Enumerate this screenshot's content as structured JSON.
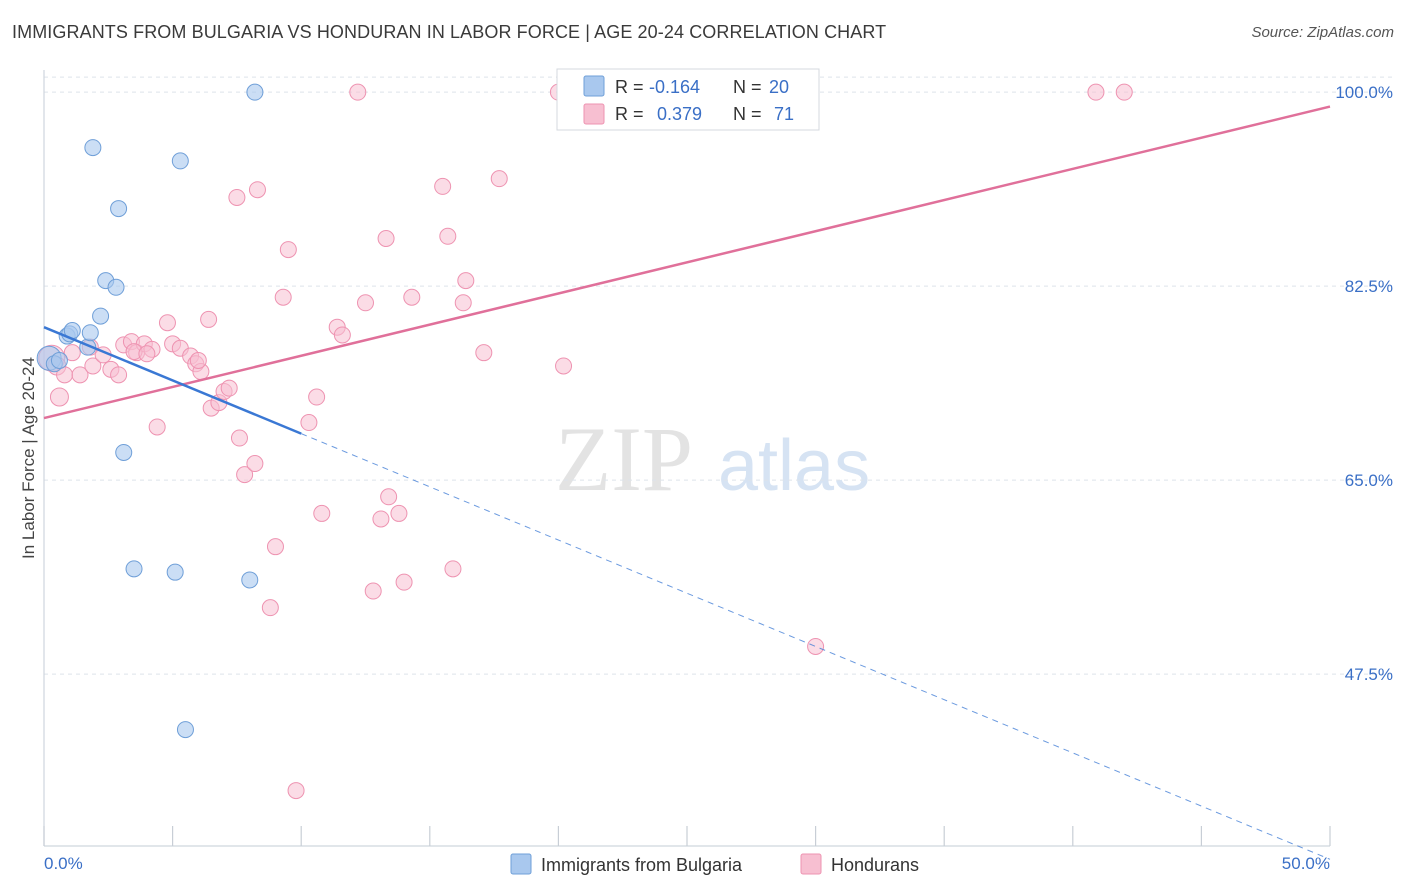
{
  "header": {
    "title": "IMMIGRANTS FROM BULGARIA VS HONDURAN IN LABOR FORCE | AGE 20-24 CORRELATION CHART",
    "source": "Source: ZipAtlas.com"
  },
  "watermark": {
    "part1": "ZIP",
    "part2": "atlas"
  },
  "legend_box": {
    "rows": [
      {
        "r_label": "R =",
        "r_value": "-0.164",
        "n_label": "N =",
        "n_value": "20"
      },
      {
        "r_label": "R =",
        "r_value": "0.379",
        "n_label": "N =",
        "n_value": "71"
      }
    ]
  },
  "bottom_legend": {
    "items": [
      "Immigrants from Bulgaria",
      "Hondurans"
    ]
  },
  "colors": {
    "bulgaria_fill": "#a9c8ee",
    "bulgaria_stroke": "#6f9fd8",
    "bulgaria_line": "#3a78d4",
    "honduran_fill": "#f7bfd1",
    "honduran_stroke": "#ee93b1",
    "honduran_line": "#e0709a",
    "axis_label_blue": "#3a6fc6",
    "grid": "#dde3ea"
  },
  "chart_data": {
    "type": "scatter",
    "title": "IMMIGRANTS FROM BULGARIA VS HONDURAN IN LABOR FORCE | AGE 20-24 CORRELATION CHART",
    "xlabel": "",
    "ylabel": "In Labor Force | Age 20-24",
    "xlim": [
      0,
      50
    ],
    "ylim": [
      32,
      102
    ],
    "x_tick_labels": [
      "0.0%",
      "50.0%"
    ],
    "y_ticks": [
      47.5,
      65.0,
      82.5,
      100.0
    ],
    "y_tick_labels": [
      "47.5%",
      "65.0%",
      "82.5%",
      "100.0%"
    ],
    "grid": true,
    "legend_position": "top-center",
    "series": [
      {
        "name": "Immigrants from Bulgaria",
        "R": -0.164,
        "N": 20,
        "points": [
          [
            0.2,
            76.0
          ],
          [
            0.4,
            75.5
          ],
          [
            0.6,
            75.8
          ],
          [
            0.9,
            78.0
          ],
          [
            1.0,
            78.2
          ],
          [
            1.1,
            78.5
          ],
          [
            1.7,
            77.0
          ],
          [
            1.8,
            78.3
          ],
          [
            2.2,
            79.8
          ],
          [
            2.4,
            83.0
          ],
          [
            2.8,
            82.4
          ],
          [
            2.9,
            89.5
          ],
          [
            3.1,
            67.5
          ],
          [
            3.5,
            57.0
          ],
          [
            5.1,
            56.7
          ],
          [
            1.9,
            95.0
          ],
          [
            5.3,
            93.8
          ],
          [
            8.2,
            100.0
          ],
          [
            8.0,
            56.0
          ],
          [
            5.5,
            42.5
          ]
        ],
        "trend_solid": {
          "x": [
            0,
            10
          ],
          "y": [
            78.8,
            69.2
          ]
        },
        "trend_dashed": {
          "x": [
            10,
            50
          ],
          "y": [
            69.2,
            30.8
          ]
        }
      },
      {
        "name": "Hondurans",
        "R": 0.379,
        "N": 71,
        "points": [
          [
            0.3,
            76.0
          ],
          [
            0.5,
            75.3
          ],
          [
            0.6,
            72.5
          ],
          [
            0.8,
            74.5
          ],
          [
            1.1,
            76.5
          ],
          [
            1.4,
            74.5
          ],
          [
            1.8,
            77.0
          ],
          [
            1.9,
            75.3
          ],
          [
            2.3,
            76.3
          ],
          [
            2.6,
            75.0
          ],
          [
            2.9,
            74.5
          ],
          [
            3.1,
            77.2
          ],
          [
            3.4,
            77.5
          ],
          [
            3.6,
            76.5
          ],
          [
            3.9,
            77.3
          ],
          [
            4.2,
            76.8
          ],
          [
            4.4,
            69.8
          ],
          [
            4.8,
            79.2
          ],
          [
            5.0,
            77.3
          ],
          [
            5.3,
            76.9
          ],
          [
            5.7,
            76.2
          ],
          [
            5.9,
            75.5
          ],
          [
            6.1,
            74.8
          ],
          [
            6.4,
            79.5
          ],
          [
            6.5,
            71.5
          ],
          [
            6.8,
            72.0
          ],
          [
            7.0,
            73.0
          ],
          [
            7.2,
            73.3
          ],
          [
            7.6,
            68.8
          ],
          [
            7.8,
            65.5
          ],
          [
            8.2,
            66.5
          ],
          [
            7.5,
            90.5
          ],
          [
            8.3,
            91.2
          ],
          [
            9.0,
            59.0
          ],
          [
            8.8,
            53.5
          ],
          [
            9.3,
            81.5
          ],
          [
            9.5,
            85.8
          ],
          [
            9.8,
            37.0
          ],
          [
            10.3,
            70.2
          ],
          [
            10.6,
            72.5
          ],
          [
            10.8,
            62.0
          ],
          [
            11.4,
            78.8
          ],
          [
            11.6,
            78.1
          ],
          [
            12.2,
            100.0
          ],
          [
            12.5,
            81.0
          ],
          [
            12.8,
            55.0
          ],
          [
            13.1,
            61.5
          ],
          [
            13.3,
            86.8
          ],
          [
            13.4,
            63.5
          ],
          [
            13.8,
            62.0
          ],
          [
            14.0,
            55.8
          ],
          [
            14.3,
            81.5
          ],
          [
            15.5,
            91.5
          ],
          [
            15.7,
            87.0
          ],
          [
            15.9,
            57.0
          ],
          [
            16.3,
            81.0
          ],
          [
            16.4,
            83.0
          ],
          [
            17.1,
            76.5
          ],
          [
            17.7,
            92.2
          ],
          [
            20.2,
            75.3
          ],
          [
            20.0,
            100.0
          ],
          [
            23.6,
            100.0
          ],
          [
            23.4,
            100.0
          ],
          [
            25.2,
            100.0
          ],
          [
            27.8,
            100.0
          ],
          [
            30.0,
            50.0
          ],
          [
            40.9,
            100.0
          ],
          [
            42.0,
            100.0
          ],
          [
            3.5,
            76.6
          ],
          [
            6.0,
            75.8
          ],
          [
            4.0,
            76.4
          ]
        ],
        "trend": {
          "x": [
            0,
            50
          ],
          "y": [
            70.6,
            98.7
          ]
        }
      }
    ]
  }
}
